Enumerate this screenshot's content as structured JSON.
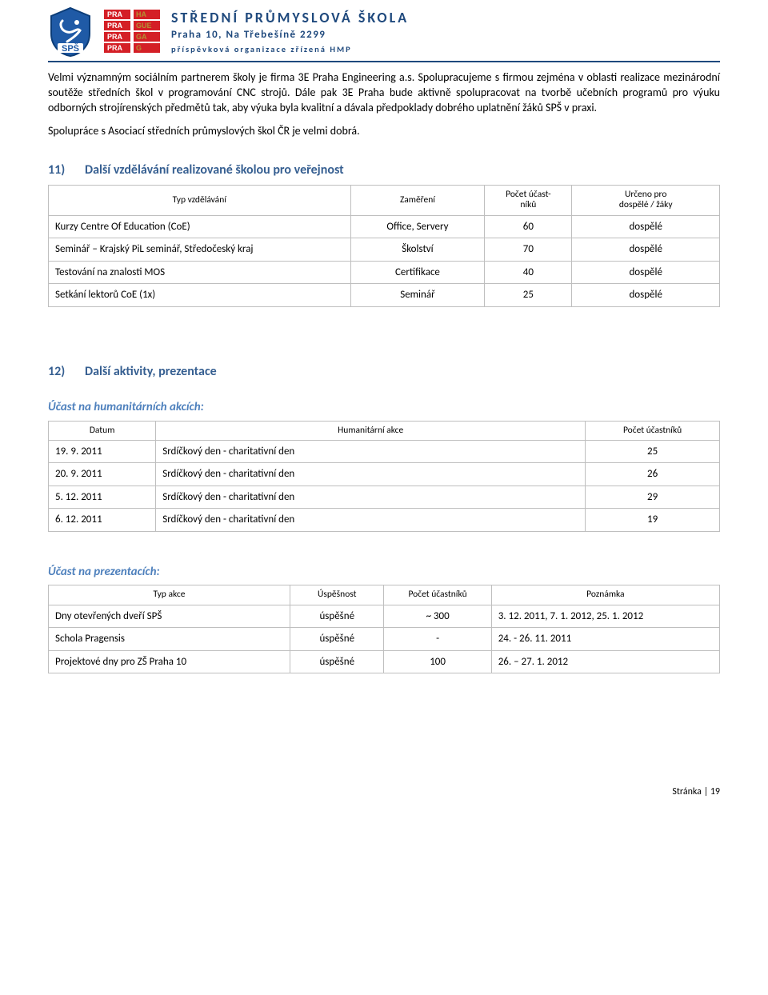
{
  "header": {
    "title": "STŘEDNÍ PRŮMYSLOVÁ ŠKOLA",
    "sub1": "Praha 10, Na Třebešíně 2299",
    "sub2": "příspěvková organizace zřízená HMP",
    "praha_lines": [
      "PRA HA",
      "PRA GUE",
      "PRA GA",
      "PRA G"
    ]
  },
  "paragraphs": {
    "p1": "Velmi významným sociálním partnerem školy je firma 3E Praha Engineering a.s. Spolupracujeme s firmou zejména v oblasti realizace mezinárodní soutěže středních škol v programování CNC strojů. Dále pak 3E Praha bude aktivně spolupracovat na tvorbě učebních programů pro výuku odborných strojírenských předmětů tak, aby výuka byla kvalitní a dávala předpoklady dobrého uplatnění žáků SPŠ v praxi.",
    "p2": "Spolupráce s Asociací středních průmyslových škol ČR je velmi dobrá."
  },
  "sec11": {
    "num": "11)",
    "title": "Další vzdělávání realizované školou pro veřejnost",
    "columns": [
      "Typ vzdělávání",
      "Zaměření",
      "Počet účast-\nníků",
      "Určeno pro\ndospělé / žáky"
    ],
    "rows": [
      [
        "Kurzy Centre Of Education (CoE)",
        "Office, Servery",
        "60",
        "dospělé"
      ],
      [
        "Seminář – Krajský PiL seminář, Středočeský kraj",
        "Školství",
        "70",
        "dospělé"
      ],
      [
        "Testování na znalosti MOS",
        "Certifikace",
        "40",
        "dospělé"
      ],
      [
        "Setkání lektorů CoE (1x)",
        "Seminář",
        "25",
        "dospělé"
      ]
    ],
    "col_widths": [
      "45%",
      "20%",
      "13%",
      "22%"
    ]
  },
  "sec12": {
    "num": "12)",
    "title": "Další aktivity, prezentace"
  },
  "humanitarian": {
    "heading": "Účast na humanitárních akcích:",
    "columns": [
      "Datum",
      "Humanitární akce",
      "Počet účastníků"
    ],
    "rows": [
      [
        "19. 9. 2011",
        "Srdíčkový den - charitativní den",
        "25"
      ],
      [
        "20. 9. 2011",
        "Srdíčkový den - charitativní den",
        "26"
      ],
      [
        "5. 12. 2011",
        "Srdíčkový den - charitativní den",
        "29"
      ],
      [
        "6. 12. 2011",
        "Srdíčkový den - charitativní den",
        "19"
      ]
    ],
    "col_widths": [
      "16%",
      "64%",
      "20%"
    ]
  },
  "presentations": {
    "heading": "Účast na prezentacích:",
    "columns": [
      "Typ akce",
      "Úspěšnost",
      "Počet účastníků",
      "Poznámka"
    ],
    "rows": [
      [
        "Dny otevřených dveří SPŠ",
        "úspěšné",
        "~ 300",
        "3. 12. 2011, 7. 1. 2012, 25. 1. 2012"
      ],
      [
        "Schola Pragensis",
        "úspěšné",
        "-",
        "24. - 26. 11. 2011"
      ],
      [
        "Projektové dny pro ZŠ Praha 10",
        "úspěšné",
        "100",
        "26. – 27. 1. 2012"
      ]
    ],
    "col_widths": [
      "36%",
      "14%",
      "16%",
      "34%"
    ]
  },
  "footer": "Stránka | 19",
  "colors": {
    "accent": "#1f497d",
    "heading": "#365f91",
    "subheading": "#4f81bd",
    "border": "#bfbfbf",
    "praha_red": "#d41f26",
    "praha_gold": "#b49032"
  }
}
